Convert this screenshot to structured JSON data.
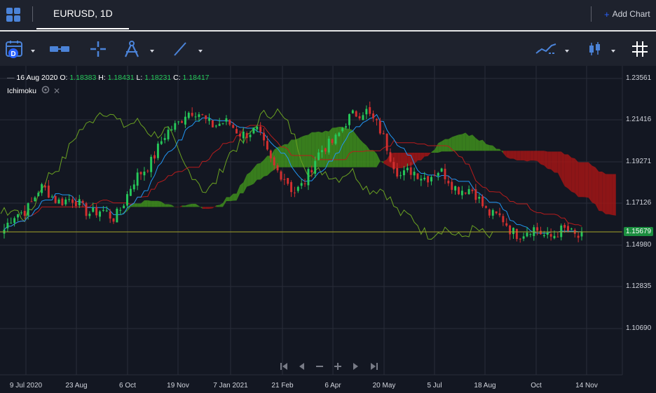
{
  "header": {
    "tab_label": "EURUSD, 1D",
    "add_chart_label": "Add Chart",
    "add_chart_plus": "+"
  },
  "legend": {
    "date": "16 Aug 2020",
    "o_label": "O:",
    "o_value": "1.18383",
    "h_label": "H:",
    "h_value": "1.18431",
    "l_label": "L:",
    "l_value": "1.18231",
    "c_label": "C:",
    "c_value": "1.18417",
    "indicator_name": "Ichimoku"
  },
  "price_axis": {
    "labels": [
      "1.23561",
      "1.21416",
      "1.19271",
      "1.17126",
      "1.14980",
      "1.12835",
      "1.10690"
    ],
    "current_price": "1.15679"
  },
  "time_axis": {
    "labels": [
      "9 Jul 2020",
      "23 Aug",
      "6 Oct",
      "19 Nov",
      "7 Jan 2021",
      "21 Feb",
      "6 Apr",
      "20 May",
      "5 Jul",
      "18 Aug",
      "Oct",
      "14 Nov"
    ]
  },
  "colors": {
    "background": "#131722",
    "bull": "#26c85a",
    "bear": "#d32f2f",
    "kumo_bull": "#3f8f1c",
    "kumo_bear": "#a31515",
    "tenkan": "#2196f3",
    "kijun": "#b71c1c",
    "chikou": "#6aa121",
    "price_line": "#a4a42a"
  },
  "chart_data": {
    "type": "candlestick",
    "symbol": "EURUSD",
    "interval": "1D",
    "y_range": [
      1.1,
      1.24
    ],
    "x": [
      "2020-07",
      "2020-08",
      "2020-09",
      "2020-10",
      "2020-11",
      "2020-12",
      "2021-01",
      "2021-02",
      "2021-03",
      "2021-04",
      "2021-05",
      "2021-06",
      "2021-07",
      "2021-08",
      "2021-09",
      "2021-10",
      "2021-11"
    ],
    "close": [
      1.158,
      1.178,
      1.171,
      1.164,
      1.193,
      1.219,
      1.212,
      1.207,
      1.176,
      1.203,
      1.222,
      1.186,
      1.187,
      1.176,
      1.158,
      1.156,
      1.156
    ],
    "series": [
      {
        "name": "Ichimoku"
      }
    ]
  }
}
